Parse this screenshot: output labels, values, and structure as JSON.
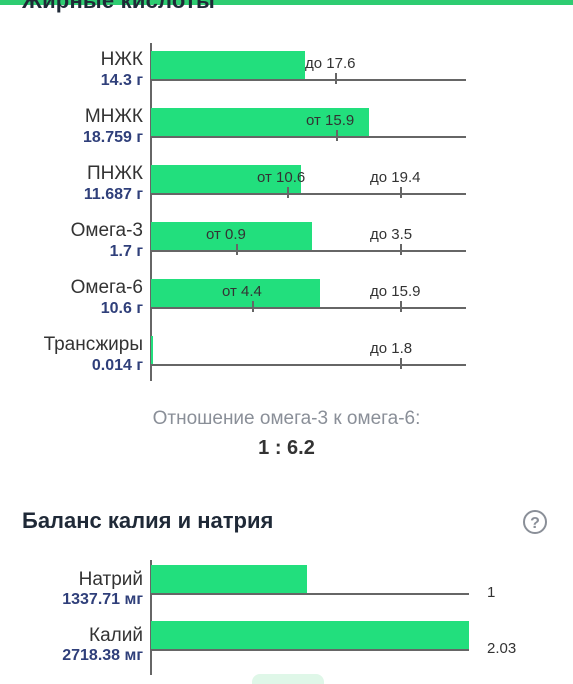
{
  "header": {
    "title": "Жирные кислоты"
  },
  "fatty_acids": [
    {
      "name": "НЖК",
      "value": "14.3 г",
      "fill": 0.489,
      "refs": [
        {
          "text": "до 17.6",
          "pos": 0.583
        }
      ]
    },
    {
      "name": "МНЖК",
      "value": "18.759 г",
      "fill": 0.692,
      "refs": [
        {
          "text": "от 15.9",
          "pos": 0.587
        }
      ]
    },
    {
      "name": "ПНЖК",
      "value": "11.687 г",
      "fill": 0.476,
      "refs": [
        {
          "text": "от 10.6",
          "pos": 0.432
        },
        {
          "text": "до 19.4",
          "pos": 0.791
        }
      ]
    },
    {
      "name": "Омега-3",
      "value": "1.7 г",
      "fill": 0.51,
      "refs": [
        {
          "text": "от 0.9",
          "pos": 0.27
        },
        {
          "text": "до 3.5",
          "pos": 0.791
        }
      ]
    },
    {
      "name": "Омега-6",
      "value": "10.6 г",
      "fill": 0.538,
      "refs": [
        {
          "text": "от 4.4",
          "pos": 0.32
        },
        {
          "text": "до 15.9",
          "pos": 0.791
        }
      ]
    },
    {
      "name": "Трансжиры",
      "value": "0.014 г",
      "fill": 0.005,
      "refs": [
        {
          "text": "до 1.8",
          "pos": 0.79
        }
      ]
    }
  ],
  "ratio": {
    "caption": "Отношение омега-3 к омега-6:",
    "value": "1 : 6.2"
  },
  "balance": {
    "title": "Баланс калия и натрия",
    "help_label": "?",
    "rows": [
      {
        "name": "Натрий",
        "value": "1337.71 мг",
        "ratio_label": "1",
        "fill": 0.492
      },
      {
        "name": "Калий",
        "value": "2718.38 мг",
        "ratio_label": "2.03",
        "fill": 1.0
      }
    ]
  },
  "colors": {
    "bar": "#22df7d",
    "accent": "#2ecc71",
    "value_text": "#2f3f7a"
  }
}
